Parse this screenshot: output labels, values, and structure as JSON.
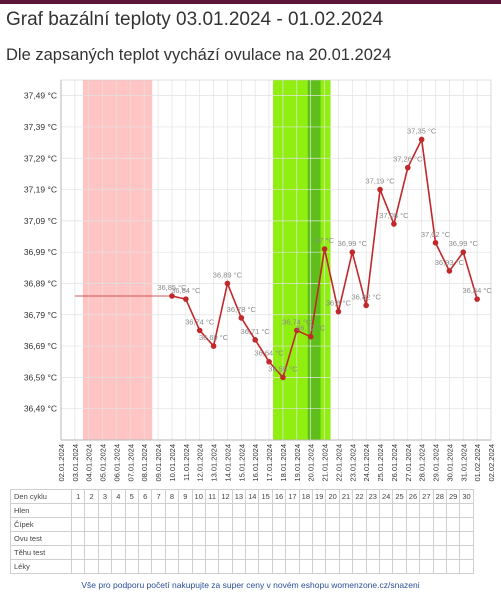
{
  "title": "Graf bazální teploty 03.01.2024 - 01.02.2024",
  "subtitle": "Dle zapsaných teplot vychází ovulace na 20.01.2024",
  "chart_data": {
    "type": "line",
    "ylim": [
      36.39,
      37.54
    ],
    "ytick_values": [
      36.49,
      36.59,
      36.69,
      36.79,
      36.89,
      36.99,
      37.09,
      37.19,
      37.29,
      37.39,
      37.49
    ],
    "ytick_labels": [
      "36,49 °C",
      "36,59 °C",
      "36,69 °C",
      "36,79 °C",
      "36,89 °C",
      "36,99 °C",
      "37,09 °C",
      "37,19 °C",
      "37,29 °C",
      "37,39 °C",
      "37,49 °C"
    ],
    "dates": [
      "02.01.2024",
      "03.01.2024",
      "04.01.2024",
      "05.01.2024",
      "06.01.2024",
      "07.01.2024",
      "08.01.2024",
      "09.01.2024",
      "10.01.2024",
      "11.01.2024",
      "12.01.2024",
      "13.01.2024",
      "14.01.2024",
      "15.01.2024",
      "16.01.2024",
      "17.01.2024",
      "18.01.2024",
      "19.01.2024",
      "20.01.2024",
      "21.01.2024",
      "22.01.2024",
      "23.01.2024",
      "24.01.2024",
      "25.01.2024",
      "26.01.2024",
      "27.01.2024",
      "28.01.2024",
      "29.01.2024",
      "30.01.2024",
      "31.01.2024",
      "01.02.2024",
      "02.02.2024"
    ],
    "baseline_value": 36.85,
    "baseline_from": "03.01.2024",
    "baseline_to": "10.01.2024",
    "period_band": {
      "from": "03.01.2024",
      "to": "08.01.2024",
      "color": "#ffc4c4"
    },
    "fertile_band": {
      "from": "17.01.2024",
      "to": "21.01.2024",
      "color": "#90ee10"
    },
    "ovulation_band": {
      "from": "20.01.2024",
      "to": "21.01.2024",
      "color": "#5fbf1a"
    },
    "series": [
      {
        "color": "#c0282a",
        "points": [
          {
            "x": "10.01.2024",
            "y": 36.85,
            "label": "36,85 °C"
          },
          {
            "x": "11.01.2024",
            "y": 36.84,
            "label": "36,84 °C"
          },
          {
            "x": "12.01.2024",
            "y": 36.74,
            "label": "36,74 °C"
          },
          {
            "x": "13.01.2024",
            "y": 36.69,
            "label": "36,69 °C"
          },
          {
            "x": "14.01.2024",
            "y": 36.89,
            "label": "36,89 °C"
          },
          {
            "x": "15.01.2024",
            "y": 36.78,
            "label": "36,78 °C"
          },
          {
            "x": "16.01.2024",
            "y": 36.71,
            "label": "36,71 °C"
          },
          {
            "x": "17.01.2024",
            "y": 36.64,
            "label": "36,64 °C"
          },
          {
            "x": "18.01.2024",
            "y": 36.59,
            "label": "36,59 °C"
          },
          {
            "x": "19.01.2024",
            "y": 36.74,
            "label": "36,74 °C"
          },
          {
            "x": "20.01.2024",
            "y": 36.72,
            "label": "36,72 °C"
          },
          {
            "x": "21.01.2024",
            "y": 37.0,
            "label": "37 °C"
          },
          {
            "x": "22.01.2024",
            "y": 36.8,
            "label": "36,8 °C"
          },
          {
            "x": "23.01.2024",
            "y": 36.99,
            "label": "36,99 °C"
          },
          {
            "x": "24.01.2024",
            "y": 36.82,
            "label": "36,82 °C"
          },
          {
            "x": "25.01.2024",
            "y": 37.19,
            "label": "37,19 °C"
          },
          {
            "x": "26.01.2024",
            "y": 37.08,
            "label": "37,08 °C"
          },
          {
            "x": "27.01.2024",
            "y": 37.26,
            "label": "37,26 °C"
          },
          {
            "x": "28.01.2024",
            "y": 37.35,
            "label": "37,35 °C"
          },
          {
            "x": "29.01.2024",
            "y": 37.02,
            "label": "37,02 °C"
          },
          {
            "x": "30.01.2024",
            "y": 36.93,
            "label": "36,93 °C"
          },
          {
            "x": "31.01.2024",
            "y": 36.99,
            "label": "36,99 °C"
          },
          {
            "x": "01.02.2024",
            "y": 36.84,
            "label": "36,84 °C"
          }
        ]
      }
    ],
    "grid": true
  },
  "cycle_table": {
    "header_label": "Den cyklu",
    "days": [
      "1",
      "2",
      "3",
      "4",
      "5",
      "6",
      "7",
      "8",
      "9",
      "10",
      "11",
      "12",
      "13",
      "14",
      "15",
      "16",
      "17",
      "18",
      "19",
      "20",
      "21",
      "22",
      "23",
      "24",
      "25",
      "26",
      "27",
      "28",
      "29",
      "30"
    ],
    "rows": [
      "Hlen",
      "Čípek",
      "Ovu test",
      "Těhu test",
      "Léky"
    ]
  },
  "footer": "Vše pro podporu početí nakupujte za super ceny v novém eshopu womenzone.cz/snazeni"
}
